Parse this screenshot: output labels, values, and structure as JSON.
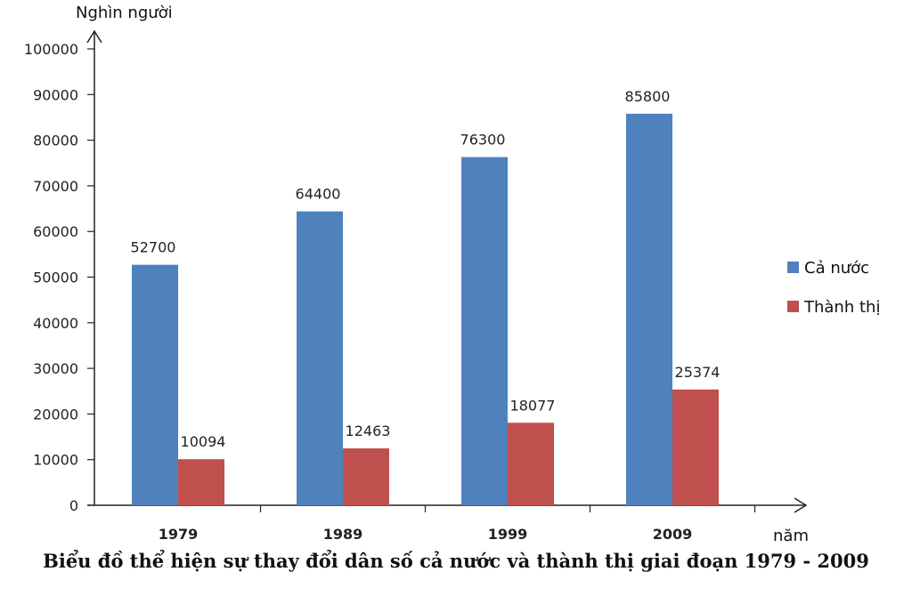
{
  "chart_data": {
    "type": "bar",
    "title": "",
    "caption": "Biểu đồ thể hiện sự thay đổi dân số cả nước và thành thị giai đoạn 1979 - 2009",
    "xlabel": "năm",
    "ylabel": "Nghìn người",
    "categories": [
      "1979",
      "1989",
      "1999",
      "2009"
    ],
    "series": [
      {
        "name": "Cả nước",
        "values": [
          52700,
          64400,
          76300,
          85800
        ],
        "color": "#4F81BD"
      },
      {
        "name": "Thành thị",
        "values": [
          10094,
          12463,
          18077,
          25374
        ],
        "color": "#C0504D"
      }
    ],
    "ylim": [
      0,
      100000
    ],
    "yticks": [
      0,
      10000,
      20000,
      30000,
      40000,
      50000,
      60000,
      70000,
      80000,
      90000,
      100000
    ],
    "grid": false,
    "legend": "right",
    "data_labels": true
  }
}
